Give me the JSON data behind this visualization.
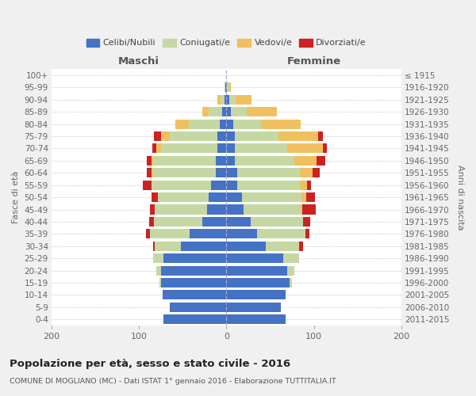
{
  "age_groups": [
    "0-4",
    "5-9",
    "10-14",
    "15-19",
    "20-24",
    "25-29",
    "30-34",
    "35-39",
    "40-44",
    "45-49",
    "50-54",
    "55-59",
    "60-64",
    "65-69",
    "70-74",
    "75-79",
    "80-84",
    "85-89",
    "90-94",
    "95-99",
    "100+"
  ],
  "birth_years": [
    "2011-2015",
    "2006-2010",
    "2001-2005",
    "1996-2000",
    "1991-1995",
    "1986-1990",
    "1981-1985",
    "1976-1980",
    "1971-1975",
    "1966-1970",
    "1961-1965",
    "1956-1960",
    "1951-1955",
    "1946-1950",
    "1941-1945",
    "1936-1940",
    "1931-1935",
    "1926-1930",
    "1921-1925",
    "1916-1920",
    "≤ 1915"
  ],
  "maschi": {
    "celibi": [
      72,
      65,
      73,
      75,
      75,
      72,
      52,
      42,
      28,
      22,
      20,
      18,
      12,
      12,
      10,
      10,
      8,
      5,
      2,
      1,
      0
    ],
    "coniugati": [
      0,
      0,
      0,
      2,
      5,
      12,
      30,
      45,
      55,
      60,
      58,
      68,
      72,
      72,
      65,
      55,
      35,
      15,
      5,
      1,
      0
    ],
    "vedovi": [
      0,
      0,
      0,
      0,
      0,
      0,
      0,
      0,
      0,
      0,
      0,
      0,
      2,
      2,
      5,
      10,
      15,
      8,
      3,
      0,
      0
    ],
    "divorziati": [
      0,
      0,
      0,
      0,
      0,
      0,
      2,
      5,
      5,
      5,
      8,
      10,
      5,
      5,
      5,
      8,
      0,
      0,
      0,
      0,
      0
    ]
  },
  "femmine": {
    "nubili": [
      68,
      62,
      68,
      72,
      70,
      65,
      45,
      35,
      28,
      20,
      18,
      12,
      12,
      10,
      10,
      10,
      8,
      5,
      3,
      1,
      0
    ],
    "coniugate": [
      0,
      0,
      0,
      3,
      8,
      18,
      38,
      55,
      60,
      65,
      68,
      72,
      72,
      68,
      60,
      50,
      32,
      18,
      8,
      2,
      0
    ],
    "vedove": [
      0,
      0,
      0,
      0,
      0,
      0,
      0,
      0,
      0,
      2,
      5,
      8,
      15,
      25,
      40,
      45,
      45,
      35,
      18,
      2,
      0
    ],
    "divorziate": [
      0,
      0,
      0,
      0,
      0,
      0,
      5,
      5,
      8,
      15,
      10,
      5,
      8,
      10,
      5,
      5,
      0,
      0,
      0,
      0,
      0
    ]
  },
  "colors": {
    "celibi": "#4472c4",
    "coniugati": "#c5d8a4",
    "vedovi": "#f0c060",
    "divorziati": "#cc2222"
  },
  "title": "Popolazione per età, sesso e stato civile - 2016",
  "subtitle": "COMUNE DI MOGLIANO (MC) - Dati ISTAT 1° gennaio 2016 - Elaborazione TUTTITALIA.IT",
  "xlabel_left": "Maschi",
  "xlabel_right": "Femmine",
  "ylabel_left": "Fasce di età",
  "ylabel_right": "Anni di nascita",
  "xlim": 200,
  "bg_color": "#f0f0f0",
  "plot_bg": "#ffffff",
  "legend_labels": [
    "Celibi/Nubili",
    "Coniugati/e",
    "Vedovi/e",
    "Divorziati/e"
  ]
}
